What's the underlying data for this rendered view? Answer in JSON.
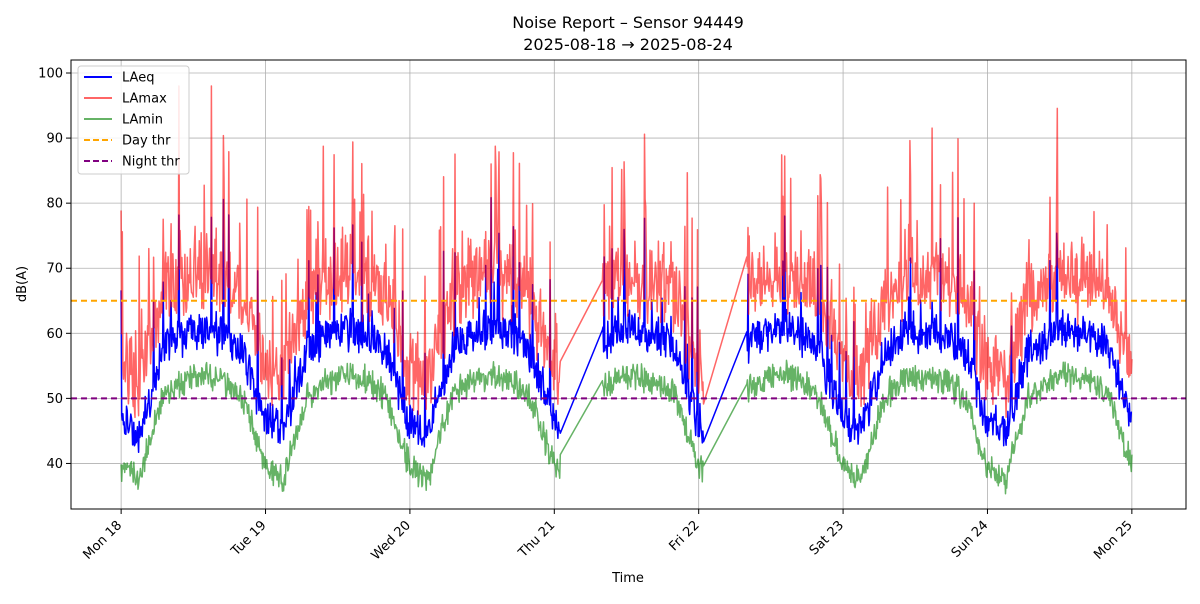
{
  "chart_data": {
    "type": "line",
    "title": "Noise Report – Sensor 94449",
    "subtitle": "2025-08-18 → 2025-08-24",
    "xlabel": "Time",
    "ylabel": "dB(A)",
    "xlim": [
      "2025-08-17T15:40",
      "2025-08-25T09:00"
    ],
    "ylim": [
      33,
      102
    ],
    "grid": true,
    "legend": "upper left",
    "x_ticks": [
      {
        "label": "Mon 18",
        "x": "2025-08-18T00:00"
      },
      {
        "label": "Tue 19",
        "x": "2025-08-19T00:00"
      },
      {
        "label": "Wed 20",
        "x": "2025-08-20T00:00"
      },
      {
        "label": "Thu 21",
        "x": "2025-08-21T00:00"
      },
      {
        "label": "Fri 22",
        "x": "2025-08-22T00:00"
      },
      {
        "label": "Sat 23",
        "x": "2025-08-23T00:00"
      },
      {
        "label": "Sun 24",
        "x": "2025-08-24T00:00"
      },
      {
        "label": "Mon 25",
        "x": "2025-08-25T00:00"
      }
    ],
    "y_ticks": [
      40,
      50,
      60,
      70,
      80,
      90,
      100
    ],
    "data_segments": [
      {
        "start": "2025-08-18T00:00",
        "end": "2025-08-21T01:00"
      },
      {
        "start": "2025-08-21T08:00",
        "end": "2025-08-22T00:50"
      },
      {
        "start": "2025-08-22T08:00",
        "end": "2025-08-25T00:00"
      }
    ],
    "series": [
      {
        "name": "LAeq",
        "color": "#0000ff",
        "alpha": 1.0,
        "linestyle": "solid",
        "sample_values": [
          {
            "x": "2025-08-18T00:00",
            "y": 42
          },
          {
            "x": "2025-08-18T03:00",
            "y": 44
          },
          {
            "x": "2025-08-18T09:00",
            "y": 55
          },
          {
            "x": "2025-08-18T15:00",
            "y": 58
          },
          {
            "x": "2025-08-19T00:00",
            "y": 43
          },
          {
            "x": "2025-08-19T12:00",
            "y": 56
          },
          {
            "x": "2025-08-20T00:00",
            "y": 41
          },
          {
            "x": "2025-08-20T12:00",
            "y": 57
          },
          {
            "x": "2025-08-21T00:00",
            "y": 43
          },
          {
            "x": "2025-08-21T08:00",
            "y": 58
          },
          {
            "x": "2025-08-22T00:00",
            "y": 40
          },
          {
            "x": "2025-08-22T08:00",
            "y": 56
          },
          {
            "x": "2025-08-23T00:00",
            "y": 46
          },
          {
            "x": "2025-08-23T12:00",
            "y": 57
          },
          {
            "x": "2025-08-24T00:00",
            "y": 43
          },
          {
            "x": "2025-08-24T12:00",
            "y": 56
          },
          {
            "x": "2025-08-25T00:00",
            "y": 44
          }
        ]
      },
      {
        "name": "LAmax",
        "color": "#ff0000",
        "alpha": 0.6,
        "linestyle": "solid",
        "sample_values": [
          {
            "x": "2025-08-18T00:00",
            "y": 60
          },
          {
            "x": "2025-08-18T15:00",
            "y": 90
          },
          {
            "x": "2025-08-19T00:00",
            "y": 58
          },
          {
            "x": "2025-08-19T12:00",
            "y": 95
          },
          {
            "x": "2025-08-20T00:00",
            "y": 58
          },
          {
            "x": "2025-08-20T12:00",
            "y": 95
          },
          {
            "x": "2025-08-21T00:00",
            "y": 62
          },
          {
            "x": "2025-08-21T12:00",
            "y": 95
          },
          {
            "x": "2025-08-22T00:00",
            "y": 48
          },
          {
            "x": "2025-08-23T00:00",
            "y": 70
          },
          {
            "x": "2025-08-23T12:00",
            "y": 90
          },
          {
            "x": "2025-08-24T00:00",
            "y": 72
          },
          {
            "x": "2025-08-24T18:00",
            "y": 97
          },
          {
            "x": "2025-08-25T00:00",
            "y": 62
          }
        ]
      },
      {
        "name": "LAmin",
        "color": "#008000",
        "alpha": 0.6,
        "linestyle": "solid",
        "sample_values": [
          {
            "x": "2025-08-18T00:00",
            "y": 37
          },
          {
            "x": "2025-08-18T12:00",
            "y": 50
          },
          {
            "x": "2025-08-19T00:00",
            "y": 39
          },
          {
            "x": "2025-08-19T12:00",
            "y": 52
          },
          {
            "x": "2025-08-20T00:00",
            "y": 37
          },
          {
            "x": "2025-08-20T12:00",
            "y": 52
          },
          {
            "x": "2025-08-21T00:00",
            "y": 39
          },
          {
            "x": "2025-08-21T12:00",
            "y": 52
          },
          {
            "x": "2025-08-22T00:00",
            "y": 37
          },
          {
            "x": "2025-08-23T00:00",
            "y": 40
          },
          {
            "x": "2025-08-23T12:00",
            "y": 53
          },
          {
            "x": "2025-08-24T00:00",
            "y": 38
          },
          {
            "x": "2025-08-24T12:00",
            "y": 51
          },
          {
            "x": "2025-08-25T00:00",
            "y": 40
          }
        ]
      },
      {
        "name": "Day thr",
        "color": "#ffa500",
        "linestyle": "dashed",
        "values": [
          {
            "x": "2025-08-17T15:40",
            "y": 65
          },
          {
            "x": "2025-08-25T09:00",
            "y": 65
          }
        ]
      },
      {
        "name": "Night thr",
        "color": "#800080",
        "linestyle": "dashed",
        "values": [
          {
            "x": "2025-08-17T15:40",
            "y": 50
          },
          {
            "x": "2025-08-25T09:00",
            "y": 50
          }
        ]
      }
    ]
  }
}
